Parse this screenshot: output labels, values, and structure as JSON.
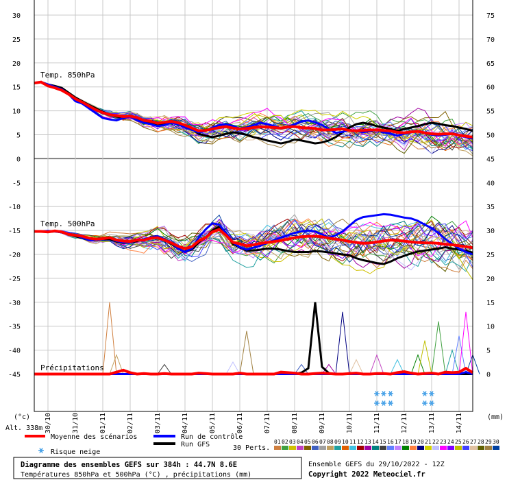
{
  "chart_data": {
    "type": "line",
    "title": "Diagramme des ensembles GEFS sur 384h : 44.7N 8.6E",
    "subtitle": "Températures 850hPa et 500hPa (°C) , précipitations (mm)",
    "run_info": "Ensemble GEFS du 29/10/2022 - 12Z",
    "copyright": "Copyright 2022 Meteociel.fr",
    "altitude": "Alt. 338m",
    "left_unit": "(°c)",
    "right_unit": "(mm)",
    "y_left_ticks": [
      "30",
      "25",
      "20",
      "15",
      "10",
      "5",
      "0",
      "-5",
      "-10",
      "-15",
      "-20",
      "-25",
      "-30",
      "-35",
      "-40",
      "-45"
    ],
    "y_right_ticks": [
      "75",
      "70",
      "65",
      "60",
      "55",
      "50",
      "45",
      "40",
      "35",
      "30",
      "25",
      "20",
      "15",
      "10",
      "5",
      "0"
    ],
    "ylim_left": [
      -45,
      30
    ],
    "ylim_right": [
      0,
      75
    ],
    "dates": [
      "30/10",
      "31/10",
      "01/11",
      "02/11",
      "03/11",
      "04/11",
      "05/11",
      "06/11",
      "07/11",
      "08/11",
      "09/11",
      "10/11",
      "11/11",
      "12/11",
      "13/11",
      "14/11"
    ],
    "panels": {
      "t850": "Temp. 850hPa",
      "t500": "Temp. 500hPa",
      "precip": "Précipitations"
    },
    "x_hours": [
      0,
      6,
      12,
      18,
      24,
      30,
      36,
      42,
      48,
      54,
      60,
      66,
      72,
      78,
      84,
      90,
      96,
      102,
      108,
      114,
      120,
      126,
      132,
      138,
      144,
      150,
      156,
      162,
      168,
      174,
      180,
      186,
      192,
      198,
      204,
      210,
      216,
      222,
      228,
      234,
      240,
      246,
      252,
      258,
      264,
      270,
      276,
      282,
      288,
      294,
      300,
      306,
      312,
      318,
      324,
      330,
      336,
      342,
      348,
      354,
      360,
      366,
      372,
      378,
      384
    ],
    "series": [
      {
        "name": "Moyenne des scénarios",
        "color": "#ff0000",
        "t850": [
          15.8,
          16,
          15.2,
          14.8,
          14.3,
          13.5,
          12.5,
          11.8,
          11,
          10.2,
          9.6,
          9.2,
          9,
          8.8,
          8.9,
          8.6,
          8,
          7.8,
          7.4,
          7.6,
          7.8,
          7.5,
          7,
          6.4,
          5.8,
          5.9,
          6.2,
          6.5,
          6.7,
          6.4,
          6.2,
          6.3,
          6.5,
          6.6,
          6.6,
          6.5,
          6.4,
          6.6,
          6.7,
          6.5,
          6.4,
          6.3,
          6,
          6,
          6.1,
          6.2,
          5.9,
          5.8,
          5.9,
          6,
          6,
          5.9,
          5.8,
          5.5,
          5.4,
          5.6,
          5.7,
          5.4,
          5.2,
          5.1,
          5.2,
          5.2,
          4.9,
          4.7,
          4.5
        ],
        "t500": [
          -15.2,
          -15.2,
          -15.3,
          -15.1,
          -15.3,
          -15.8,
          -16,
          -16.2,
          -16.6,
          -16.8,
          -16.7,
          -16.5,
          -17,
          -17.2,
          -17.3,
          -17,
          -17,
          -16.6,
          -16.5,
          -17,
          -17.6,
          -18.3,
          -18.8,
          -18.4,
          -17.2,
          -16.5,
          -15.3,
          -14.8,
          -16,
          -17.5,
          -17.8,
          -18.2,
          -18,
          -17.7,
          -17.5,
          -17.3,
          -17.1,
          -16.8,
          -16.5,
          -16.3,
          -16.2,
          -16.2,
          -16.3,
          -16.6,
          -16.8,
          -17,
          -17.3,
          -17.5,
          -17.7,
          -17.6,
          -17.4,
          -17.2,
          -17,
          -17.1,
          -17.2,
          -17.4,
          -17.5,
          -17.6,
          -17.6,
          -17.7,
          -17.9,
          -18,
          -18.2,
          -18.4,
          -18.6
        ],
        "precip": [
          0,
          0,
          0,
          0,
          0,
          0,
          0,
          0,
          0,
          0,
          0,
          0,
          0.4,
          0.8,
          0.3,
          0,
          0.1,
          0,
          0,
          0.1,
          0,
          0,
          0,
          0,
          0.2,
          0.1,
          0,
          0,
          0,
          0,
          0.2,
          0,
          0,
          0,
          0,
          0,
          0.4,
          0.3,
          0.2,
          0,
          0,
          0.1,
          0.2,
          0.1,
          0,
          0,
          0.1,
          0.2,
          0,
          0,
          0.1,
          0.1,
          0,
          0.3,
          0.5,
          0.2,
          0,
          0.1,
          0.2,
          0,
          0.4,
          0.3,
          0.4,
          1.2,
          0.3
        ]
      },
      {
        "name": "Run de contrôle",
        "color": "#0000ff",
        "t850": [
          15.8,
          16,
          15.5,
          15,
          14.5,
          13.5,
          12,
          11.5,
          10.5,
          9.5,
          8.5,
          8.2,
          8,
          8.5,
          8.8,
          8,
          7.5,
          7.2,
          6.8,
          7,
          7.5,
          7.2,
          6.5,
          6,
          5.5,
          5.8,
          6.5,
          7,
          7.2,
          6.8,
          6.3,
          6.5,
          7,
          7.5,
          7.2,
          6.8,
          6.4,
          6.6,
          7.2,
          7.8,
          8,
          7.6,
          7,
          6.2,
          5.4,
          5.6,
          6,
          5.8,
          5.5,
          5.8,
          6,
          5.5,
          5.2,
          4.8,
          5.2,
          5.5,
          5.8,
          5.4,
          5,
          4.8,
          5,
          5.3,
          5,
          4.5,
          4.2
        ],
        "t500": [
          -15.2,
          -15.2,
          -15.1,
          -15.2,
          -15.4,
          -15.6,
          -16,
          -16.5,
          -17,
          -17,
          -16.8,
          -16.5,
          -17.2,
          -17.5,
          -17.5,
          -17,
          -16.8,
          -16.5,
          -16.2,
          -16.8,
          -17.5,
          -18.8,
          -19.5,
          -18.8,
          -16.5,
          -14.8,
          -13.5,
          -13.8,
          -15.5,
          -17.5,
          -18.5,
          -19,
          -18.6,
          -18.2,
          -17.6,
          -17,
          -16.5,
          -16,
          -15.5,
          -15.2,
          -15,
          -15.2,
          -15.8,
          -16.5,
          -16,
          -15.2,
          -14,
          -12.8,
          -12.2,
          -12,
          -11.8,
          -11.6,
          -11.7,
          -12,
          -12.3,
          -12.5,
          -13,
          -13.8,
          -14.5,
          -15.5,
          -16.8,
          -17.8,
          -18.8,
          -19.5,
          -20
        ],
        "precip": [
          0,
          0,
          0,
          0,
          0,
          0,
          0,
          0,
          0,
          0,
          0,
          0,
          0,
          0,
          0,
          0,
          0,
          0,
          0,
          0,
          0,
          0,
          0,
          0,
          0,
          0,
          0,
          0,
          0,
          0,
          0,
          0,
          0,
          0,
          0,
          0,
          0,
          0,
          0,
          0,
          0,
          0,
          0,
          0,
          0,
          0,
          0,
          0,
          0,
          0,
          0,
          0,
          0,
          0,
          0,
          0,
          0,
          0,
          0,
          0,
          0,
          0,
          0,
          0.4,
          0
        ]
      },
      {
        "name": "Run GFS",
        "color": "#000000",
        "t850": [
          15.8,
          16,
          15.5,
          15.2,
          14.8,
          13.8,
          12.8,
          12,
          11.2,
          10.5,
          9.8,
          9.2,
          8.8,
          8.6,
          8.8,
          8.5,
          7.8,
          7.5,
          7.2,
          7.4,
          7.8,
          7.5,
          7,
          6.2,
          5.2,
          4.8,
          4.5,
          4.8,
          5.2,
          5.5,
          5.3,
          5,
          4.5,
          4.2,
          3.8,
          3.5,
          3.2,
          3.5,
          4,
          3.8,
          3.5,
          3.2,
          3.4,
          3.8,
          4.5,
          5.5,
          6.5,
          7.2,
          7.5,
          7.2,
          6.8,
          6.5,
          6.2,
          5.8,
          6.2,
          6.5,
          6.8,
          7.2,
          7.5,
          7.3,
          7,
          6.8,
          6.5,
          6.2,
          5.8
        ],
        "t500": [
          -15.2,
          -15.2,
          -15.3,
          -15.2,
          -15.4,
          -15.8,
          -16.2,
          -16.6,
          -17,
          -17,
          -16.8,
          -16.8,
          -17.3,
          -17.6,
          -17.5,
          -17.2,
          -17,
          -16.6,
          -16.3,
          -17,
          -17.8,
          -18.8,
          -19.5,
          -19,
          -17.5,
          -16.5,
          -15,
          -14.2,
          -15.8,
          -17.8,
          -18.6,
          -19.2,
          -19.2,
          -19,
          -18.8,
          -18.8,
          -19,
          -19.3,
          -19.5,
          -19.5,
          -19.5,
          -19.3,
          -19.4,
          -19.6,
          -19.8,
          -20,
          -20.2,
          -20.8,
          -21.2,
          -21.5,
          -21.8,
          -22,
          -21.5,
          -20.8,
          -20.3,
          -19.8,
          -19.4,
          -19.2,
          -19,
          -18.8,
          -18.5,
          -18.8,
          -19,
          -19.3,
          -19.6
        ],
        "precip": [
          0,
          0,
          0,
          0,
          0,
          0,
          0,
          0,
          0,
          0,
          0,
          0,
          0,
          0,
          0,
          0,
          0,
          0,
          0,
          0,
          0,
          0,
          0,
          0,
          0,
          0,
          0,
          0,
          0,
          0,
          0,
          0,
          0,
          0,
          0,
          0,
          0,
          0,
          0,
          0.3,
          1.2,
          15,
          1.5,
          0.2,
          0,
          0,
          0,
          0,
          0,
          0,
          0,
          0,
          0,
          0,
          0,
          0,
          0,
          0,
          0,
          0,
          0,
          0,
          0,
          0,
          0
        ]
      }
    ],
    "perturbations": {
      "label": "30 Perts.",
      "numbers": [
        "01",
        "02",
        "03",
        "04",
        "05",
        "06",
        "07",
        "08",
        "09",
        "10",
        "11",
        "12",
        "13",
        "14",
        "15",
        "16",
        "17",
        "18",
        "19",
        "20",
        "21",
        "22",
        "23",
        "24",
        "25",
        "26",
        "27",
        "28",
        "29",
        "30"
      ],
      "colors": [
        "#d08040",
        "#40a040",
        "#d0c000",
        "#c040c0",
        "#806000",
        "#4060c0",
        "#a0a0a0",
        "#c0a060",
        "#20a0a0",
        "#e06000",
        "#40c0e0",
        "#a00000",
        "#a000a0",
        "#008080",
        "#404040",
        "#6080ff",
        "#c080ff",
        "#008000",
        "#ff8040",
        "#000080",
        "#d0d000",
        "#c0c0ff",
        "#ff00ff",
        "#8000ff",
        "#c0c000",
        "#4040ff",
        "#e0c0a0",
        "#606000",
        "#a08040",
        "#0040a0"
      ],
      "precip_peaks": [
        {
          "h": 66,
          "v": 15
        },
        {
          "h": 72,
          "v": 4
        },
        {
          "h": 114,
          "v": 2
        },
        {
          "h": 174,
          "v": 2.5
        },
        {
          "h": 186,
          "v": 9
        },
        {
          "h": 234,
          "v": 2
        },
        {
          "h": 258,
          "v": 2
        },
        {
          "h": 270,
          "v": 13
        },
        {
          "h": 282,
          "v": 3
        },
        {
          "h": 300,
          "v": 4
        },
        {
          "h": 318,
          "v": 3
        },
        {
          "h": 336,
          "v": 4
        },
        {
          "h": 342,
          "v": 7
        },
        {
          "h": 354,
          "v": 11
        },
        {
          "h": 366,
          "v": 5
        },
        {
          "h": 372,
          "v": 8
        },
        {
          "h": 378,
          "v": 13
        },
        {
          "h": 384,
          "v": 4
        }
      ]
    },
    "snow_risk_hours": [
      300,
      306,
      312,
      342,
      348
    ],
    "legend": {
      "mean": "Moyenne des scénarios",
      "control": "Run de contrôle",
      "gfs": "Run GFS",
      "snow": "Risque neige"
    },
    "grid": true,
    "colors": {
      "mean": "#ff0000",
      "control": "#0000ff",
      "gfs": "#000000",
      "grid": "#bdbdbd",
      "snow": "#4aa3e8"
    }
  }
}
